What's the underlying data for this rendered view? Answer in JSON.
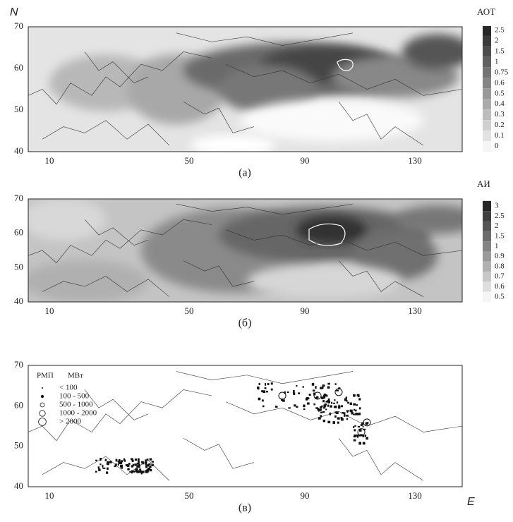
{
  "axis_labels": {
    "lat": "N",
    "lon": "E"
  },
  "panels": [
    {
      "label": "(а)",
      "yticks": [
        40,
        50,
        60,
        70
      ],
      "xticks": [
        10,
        50,
        90,
        130
      ],
      "colorbar": {
        "title": "АОТ",
        "ticks": [
          2.5,
          2,
          1.5,
          1,
          0.75,
          0.6,
          0.5,
          0.4,
          0.3,
          0.2,
          0.1,
          0
        ]
      }
    },
    {
      "label": "(б)",
      "yticks": [
        40,
        50,
        60,
        70
      ],
      "xticks": [
        10,
        50,
        90,
        130
      ],
      "colorbar": {
        "title": "АИ",
        "ticks": [
          3,
          2.5,
          2,
          1.5,
          1,
          0.9,
          0.8,
          0.7,
          0.6,
          0.5
        ]
      }
    },
    {
      "label": "(в)",
      "yticks": [
        40,
        50,
        60,
        70
      ],
      "xticks": [
        10,
        50,
        90,
        130
      ],
      "legend": {
        "title": "РМП",
        "unit": "МВт",
        "items": [
          "< 100",
          "100 - 500",
          "500 - 1000",
          "1000 - 2000",
          "> 2000"
        ]
      }
    }
  ]
}
